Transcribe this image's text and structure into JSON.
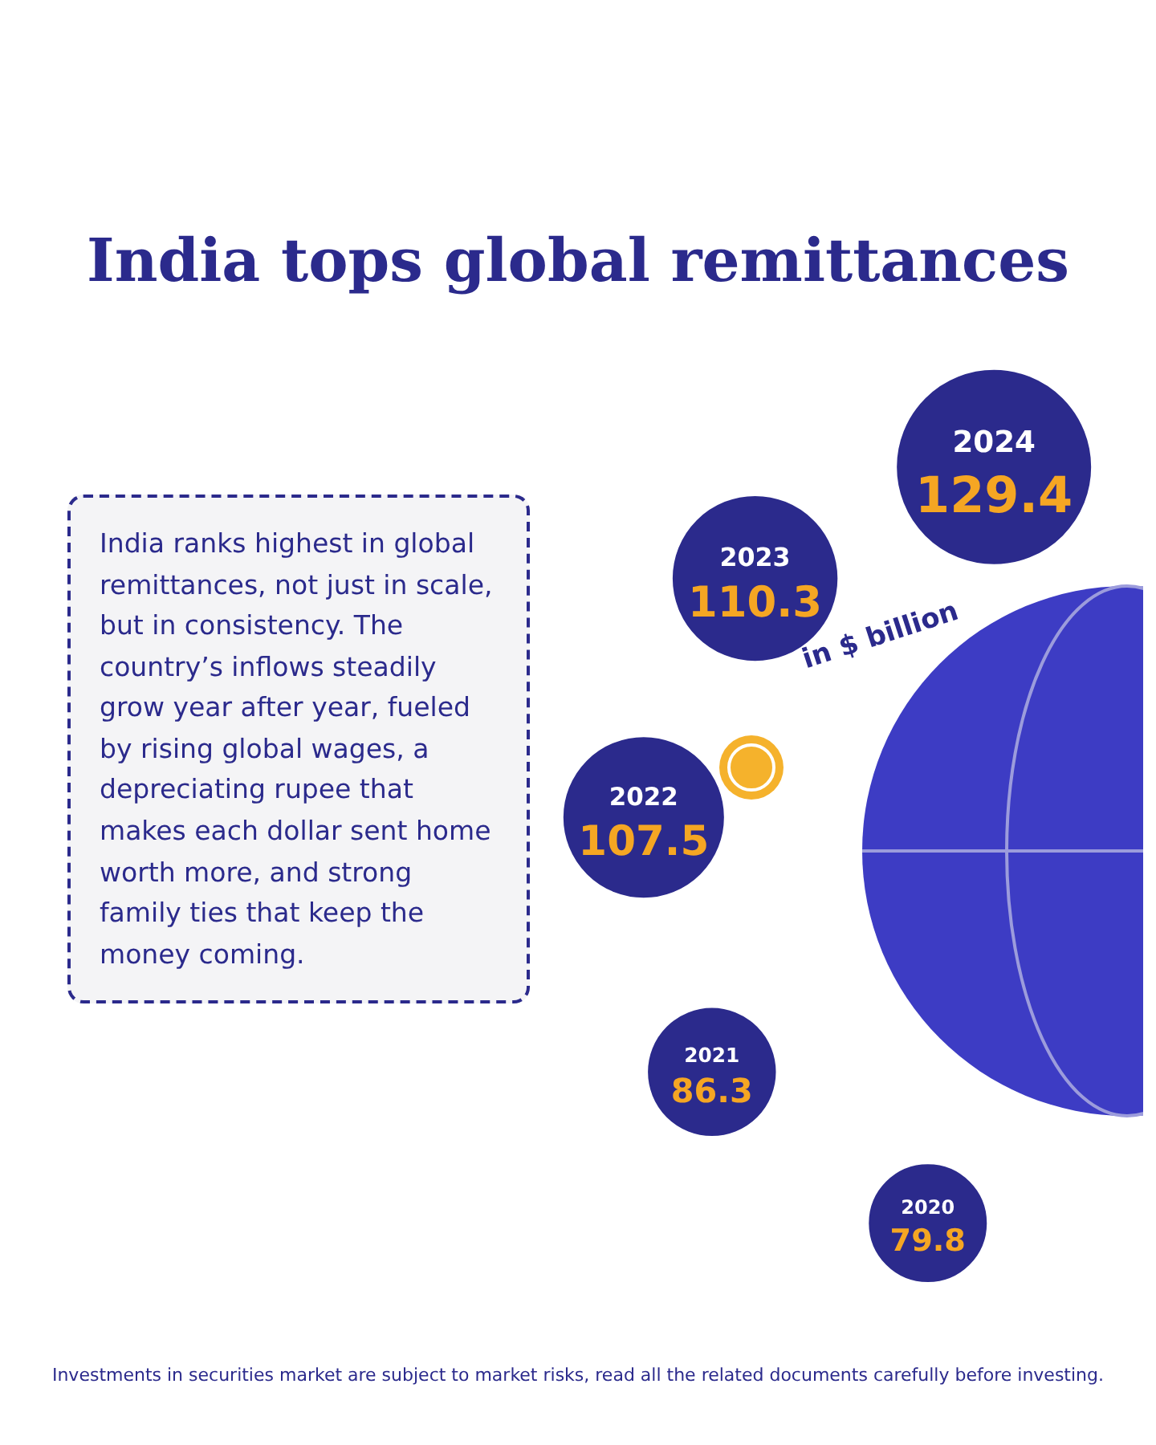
{
  "chart_data": {
    "type": "other",
    "title": "India tops global remittances",
    "subtitle": "in $ billion",
    "categories": [
      "2020",
      "2021",
      "2022",
      "2023",
      "2024"
    ],
    "values": [
      79.8,
      86.3,
      107.5,
      110.3,
      129.4
    ],
    "color": "#2b2a8c",
    "data_labels": true,
    "annotations": [
      "India ranks highest in global remittances, not just in scale, but in consistency. The country’s inflows steadily grow year after year, fueled by rising global wages, a depreciating rupee that makes each dollar sent home worth more,  and strong family ties that keep the money coming.",
      "Investments in securities market are subject to market risks, read all the related documents carefully before investing."
    ]
  }
}
